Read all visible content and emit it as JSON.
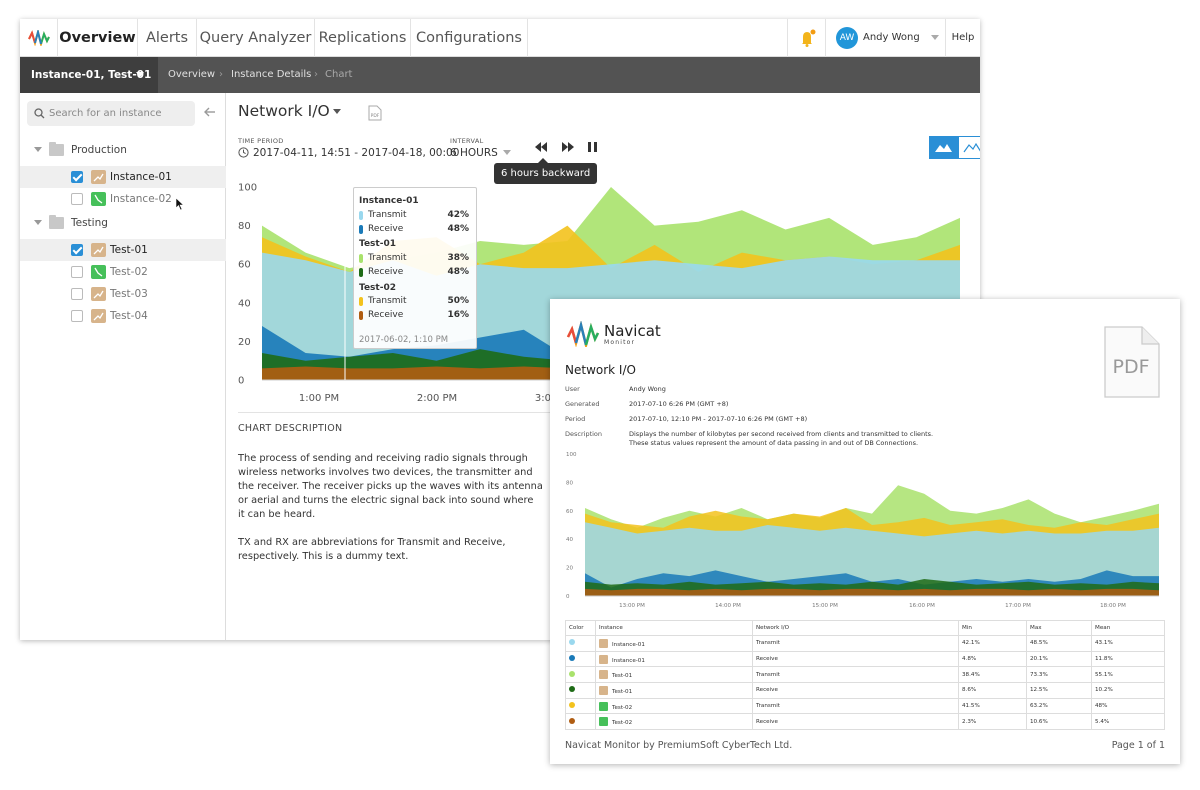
{
  "nav": {
    "tabs": [
      "Overview",
      "Alerts",
      "Query Analyzer",
      "Replications",
      "Configurations"
    ],
    "active": "Overview",
    "user_initials": "AW",
    "user_name": "Andy Wong",
    "help": "Help"
  },
  "breadcrumb": {
    "instance_selector": "Instance-01, Test-01",
    "items": [
      "Overview",
      "Instance Details",
      "Chart"
    ]
  },
  "sidebar": {
    "search_placeholder": "Search for an instance",
    "groups": [
      {
        "name": "Production",
        "items": [
          {
            "label": "Instance-01",
            "checked": true
          },
          {
            "label": "Instance-02",
            "checked": false
          }
        ]
      },
      {
        "name": "Testing",
        "items": [
          {
            "label": "Test-01",
            "checked": true
          },
          {
            "label": "Test-02",
            "checked": false
          },
          {
            "label": "Test-03",
            "checked": false
          },
          {
            "label": "Test-04",
            "checked": false
          }
        ]
      }
    ]
  },
  "main": {
    "title": "Network I/O",
    "pdf_label": "PDF",
    "time_period_label": "TIME PERIOD",
    "time_period": "2017-04-11, 14:51 - 2017-04-18, 00:00",
    "interval_label": "INTERVAL",
    "interval": "6 HOURS",
    "tooltip": "6 hours backward",
    "chart_desc_heading": "CHART DESCRIPTION",
    "chart_desc_p1": "The process of sending and receiving radio signals through wireless networks involves two devices, the transmitter and the receiver. The receiver picks up the waves with its antenna or aerial and turns the electric signal back into sound where it can be heard.",
    "chart_desc_p2": "TX and RX are abbreviations for Transmit and Receive, respectively. This is a dummy text."
  },
  "hover": {
    "groups": [
      {
        "name": "Instance-01",
        "rows": [
          {
            "label": "Transmit",
            "value": "42%",
            "color": "#9ad8ee"
          },
          {
            "label": "Receive",
            "value": "48%",
            "color": "#1a7ab8"
          }
        ]
      },
      {
        "name": "Test-01",
        "rows": [
          {
            "label": "Transmit",
            "value": "38%",
            "color": "#a9e26c"
          },
          {
            "label": "Receive",
            "value": "48%",
            "color": "#1e6b16"
          }
        ]
      },
      {
        "name": "Test-02",
        "rows": [
          {
            "label": "Transmit",
            "value": "50%",
            "color": "#f3c21d"
          },
          {
            "label": "Receive",
            "value": "16%",
            "color": "#b05d12"
          }
        ]
      }
    ],
    "date": "2017-06-02, 1:10 PM"
  },
  "chart_data": [
    {
      "type": "area",
      "x": [
        "12:40 PM",
        "1:00 PM",
        "1:20 PM",
        "1:40 PM",
        "2:00 PM",
        "2:20 PM",
        "2:40 PM",
        "3:00 PM",
        "3:20 PM",
        "3:40 PM",
        "4:00 PM",
        "4:20 PM",
        "4:40 PM",
        "5:00 PM",
        "5:20 PM",
        "5:40 PM",
        "6:00 PM"
      ],
      "x_ticks": [
        "1:00 PM",
        "2:00 PM",
        "3:00 PM"
      ],
      "y_ticks": [
        0,
        20,
        40,
        60,
        80,
        100
      ],
      "ylim": [
        0,
        100
      ],
      "series": [
        {
          "color": "#a9e26c",
          "values": [
            80,
            66,
            58,
            62,
            66,
            72,
            70,
            72,
            100,
            80,
            82,
            88,
            78,
            84,
            70,
            74,
            84
          ]
        },
        {
          "color": "#f3c21d",
          "values": [
            74,
            64,
            56,
            72,
            74,
            60,
            66,
            80,
            58,
            70,
            56,
            66,
            62,
            64,
            60,
            62,
            70
          ]
        },
        {
          "color": "#9ad8ee",
          "values": [
            66,
            62,
            56,
            62,
            54,
            60,
            58,
            58,
            60,
            62,
            60,
            58,
            62,
            64,
            62,
            62,
            62
          ]
        },
        {
          "color": "#1a7ab8",
          "values": [
            28,
            14,
            12,
            16,
            18,
            22,
            26,
            12,
            16,
            22,
            20,
            24,
            18,
            16,
            20,
            18,
            22
          ]
        },
        {
          "color": "#1e6b16",
          "values": [
            14,
            10,
            12,
            14,
            10,
            16,
            12,
            10,
            12,
            14,
            12,
            10,
            14,
            12,
            12,
            12,
            12
          ]
        },
        {
          "color": "#b05d12",
          "values": [
            6,
            7,
            6,
            6,
            7,
            6,
            7,
            6,
            6,
            7,
            6,
            6,
            7,
            6,
            6,
            7,
            6
          ]
        }
      ]
    },
    {
      "type": "area",
      "x": [
        "12:45",
        "13:00",
        "13:15",
        "13:30",
        "13:45",
        "14:00",
        "14:15",
        "14:30",
        "14:45",
        "15:00",
        "15:15",
        "15:30",
        "15:45",
        "16:00",
        "16:15",
        "16:30",
        "16:45",
        "17:00",
        "17:15",
        "17:30",
        "17:45",
        "18:00",
        "18:15"
      ],
      "x_ticks": [
        "13:00 PM",
        "14:00 PM",
        "15:00 PM",
        "16:00 PM",
        "17:00 PM",
        "18:00 PM"
      ],
      "y_ticks": [
        0,
        20,
        40,
        60,
        80,
        100
      ],
      "ylim": [
        0,
        100
      ],
      "series": [
        {
          "color": "#a9e26c",
          "values": [
            62,
            54,
            48,
            55,
            60,
            56,
            62,
            54,
            58,
            55,
            62,
            58,
            78,
            72,
            60,
            58,
            62,
            68,
            58,
            52,
            56,
            60,
            65
          ]
        },
        {
          "color": "#f3c21d",
          "values": [
            58,
            52,
            50,
            48,
            56,
            60,
            56,
            54,
            58,
            56,
            62,
            50,
            52,
            55,
            50,
            52,
            54,
            50,
            48,
            52,
            50,
            54,
            58
          ]
        },
        {
          "color": "#9ad8ee",
          "values": [
            52,
            48,
            44,
            46,
            48,
            46,
            46,
            50,
            48,
            46,
            48,
            46,
            44,
            42,
            44,
            46,
            44,
            46,
            44,
            44,
            46,
            46,
            48
          ]
        },
        {
          "color": "#1a7ab8",
          "values": [
            16,
            6,
            12,
            16,
            14,
            18,
            14,
            10,
            12,
            14,
            16,
            10,
            12,
            8,
            10,
            12,
            10,
            12,
            10,
            12,
            18,
            14,
            14
          ]
        },
        {
          "color": "#1e6b16",
          "values": [
            10,
            8,
            9,
            8,
            10,
            8,
            9,
            10,
            8,
            9,
            8,
            10,
            8,
            12,
            10,
            8,
            9,
            10,
            8,
            9,
            8,
            10,
            9
          ]
        },
        {
          "color": "#b05d12",
          "values": [
            5,
            4,
            5,
            5,
            4,
            5,
            4,
            5,
            5,
            4,
            5,
            5,
            4,
            5,
            4,
            5,
            5,
            4,
            5,
            4,
            5,
            5,
            4
          ]
        }
      ]
    }
  ],
  "report": {
    "brand": "Navicat",
    "brand_sub": "Monitor",
    "pdf_badge": "PDF",
    "title": "Network I/O",
    "meta": [
      {
        "key": "User",
        "value": "Andy Wong"
      },
      {
        "key": "Generated",
        "value": "2017-07-10 6:26 PM (GMT +8)"
      },
      {
        "key": "Period",
        "value": "2017-07-10, 12:10 PM - 2017-07-10 6:26 PM (GMT +8)"
      },
      {
        "key": "Description",
        "value": "Displays the number of kilobytes per second received from clients and transmitted to clients.",
        "value2": "These status values represent the amount of data passing in and out of DB Connections."
      }
    ],
    "table_headers": [
      "Color",
      "Instance",
      "Network I/O",
      "Min",
      "Max",
      "Mean"
    ],
    "table_rows": [
      {
        "color": "#9ad8ee",
        "icon": "tan",
        "instance": "Instance-01",
        "io": "Transmit",
        "min": "42.1%",
        "max": "48.5%",
        "mean": "43.1%"
      },
      {
        "color": "#1a7ab8",
        "icon": "tan",
        "instance": "Instance-01",
        "io": "Receive",
        "min": "4.8%",
        "max": "20.1%",
        "mean": "11.8%"
      },
      {
        "color": "#a9e26c",
        "icon": "tan",
        "instance": "Test-01",
        "io": "Transmit",
        "min": "38.4%",
        "max": "73.3%",
        "mean": "55.1%"
      },
      {
        "color": "#1e6b16",
        "icon": "tan",
        "instance": "Test-01",
        "io": "Receive",
        "min": "8.6%",
        "max": "12.5%",
        "mean": "10.2%"
      },
      {
        "color": "#f3c21d",
        "icon": "grn",
        "instance": "Test-02",
        "io": "Transmit",
        "min": "41.5%",
        "max": "63.2%",
        "mean": "48%"
      },
      {
        "color": "#b05d12",
        "icon": "grn",
        "instance": "Test-02",
        "io": "Receive",
        "min": "2.3%",
        "max": "10.6%",
        "mean": "5.4%"
      }
    ],
    "footer_left": "Navicat Monitor by PremiumSoft CyberTech Ltd.",
    "footer_right": "Page 1 of 1"
  }
}
